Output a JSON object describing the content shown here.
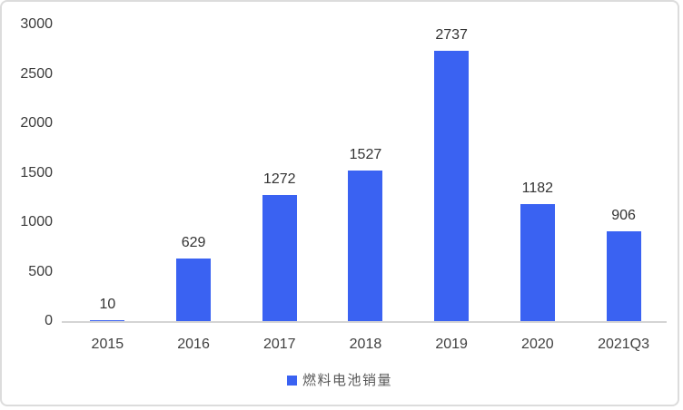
{
  "chart_data": {
    "type": "bar",
    "title": "",
    "categories": [
      "2015",
      "2016",
      "2017",
      "2018",
      "2019",
      "2020",
      "2021Q3"
    ],
    "series": [
      {
        "name": "燃料电池销量",
        "values": [
          10,
          629,
          1272,
          1527,
          2737,
          1182,
          906
        ]
      }
    ],
    "xlabel": "",
    "ylabel": "",
    "ylim": [
      0,
      3000
    ],
    "yticks": [
      0,
      500,
      1000,
      1500,
      2000,
      2500,
      3000
    ],
    "grid": false,
    "legend_position": "bottom",
    "colors": {
      "bar": "#3a62f2",
      "axis_line": "#d4d4d4",
      "tick_text": "#3b3b3b",
      "value_text": "#333333",
      "legend_text": "#595959",
      "frame_border": "#dcdcdc"
    }
  },
  "legend": {
    "label": "燃料电池销量",
    "marker_color": "#3a62f2"
  }
}
